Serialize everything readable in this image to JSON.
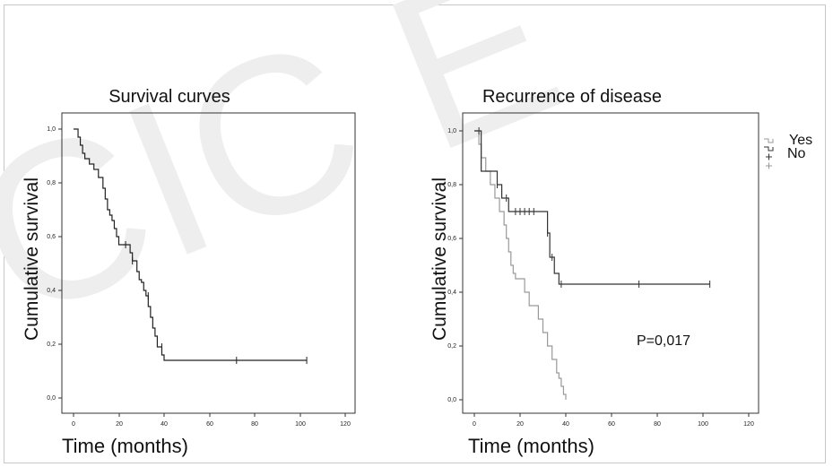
{
  "colors": {
    "frame": "#c8c8c8",
    "curve_main": "#222222",
    "curve_yes": "#999999",
    "curve_no": "#333333",
    "watermark": "#eeeeee"
  },
  "chart_data": [
    {
      "type": "line",
      "title": "Survival curves",
      "xlabel": "Time (months)",
      "ylabel": "Cumulative survival",
      "xlim": [
        0,
        120
      ],
      "ylim": [
        0,
        1
      ],
      "xticks": [
        "0",
        "20",
        "40",
        "60",
        "80",
        "100",
        "120"
      ],
      "yticks": [
        "0,0",
        "0,2",
        "0,4",
        "0,6",
        "0,8",
        "1,0"
      ],
      "step": true,
      "series": [
        {
          "color": "#222222",
          "x": [
            0,
            2,
            3,
            4,
            5,
            6,
            7,
            9,
            11,
            13,
            14,
            15,
            16,
            17,
            18,
            19,
            20,
            21,
            22,
            23,
            24,
            25,
            26,
            27,
            28,
            29,
            30,
            31,
            32,
            33,
            34,
            35,
            36,
            37,
            38,
            39,
            40,
            103
          ],
          "y": [
            1.0,
            0.97,
            0.94,
            0.91,
            0.89,
            0.89,
            0.87,
            0.85,
            0.82,
            0.78,
            0.74,
            0.7,
            0.68,
            0.66,
            0.63,
            0.6,
            0.57,
            0.57,
            0.57,
            0.57,
            0.57,
            0.54,
            0.51,
            0.51,
            0.47,
            0.44,
            0.43,
            0.4,
            0.38,
            0.34,
            0.3,
            0.26,
            0.23,
            0.19,
            0.19,
            0.16,
            0.14,
            0.14
          ],
          "censored": [
            [
              23,
              0.57
            ],
            [
              26,
              0.51
            ],
            [
              33,
              0.38
            ],
            [
              39,
              0.19
            ],
            [
              72,
              0.14
            ],
            [
              103,
              0.14
            ]
          ]
        }
      ]
    },
    {
      "type": "line",
      "title": "Recurrence of disease",
      "xlabel": "Time (months)",
      "ylabel": "Cumulative survival",
      "xlim": [
        0,
        120
      ],
      "ylim": [
        0,
        1
      ],
      "xticks": [
        "0",
        "20",
        "40",
        "60",
        "80",
        "100",
        "120"
      ],
      "yticks": [
        "0,0",
        "0,2",
        "0,4",
        "0,6",
        "0,8",
        "1,0"
      ],
      "step": true,
      "annotation": "P=0,017",
      "legend": {
        "position": "top-right",
        "entries": [
          "Yes",
          "No"
        ]
      },
      "series": [
        {
          "name": "Yes",
          "color": "#999999",
          "x": [
            0,
            2,
            3,
            5,
            7,
            9,
            11,
            13,
            14,
            15,
            16,
            17,
            18,
            19,
            20,
            22,
            24,
            26,
            28,
            30,
            32,
            34,
            36,
            37,
            38,
            39,
            40
          ],
          "y": [
            1.0,
            0.95,
            0.9,
            0.85,
            0.8,
            0.75,
            0.7,
            0.65,
            0.6,
            0.55,
            0.5,
            0.47,
            0.45,
            0.45,
            0.45,
            0.4,
            0.35,
            0.35,
            0.3,
            0.25,
            0.2,
            0.15,
            0.1,
            0.08,
            0.05,
            0.02,
            0.0
          ]
        },
        {
          "name": "No",
          "color": "#333333",
          "x": [
            0,
            3,
            8,
            10,
            12,
            15,
            30,
            32,
            33,
            35,
            37,
            103
          ],
          "y": [
            1.0,
            0.85,
            0.85,
            0.8,
            0.75,
            0.7,
            0.7,
            0.62,
            0.53,
            0.47,
            0.43,
            0.43
          ],
          "censored": [
            [
              2,
              1.0
            ],
            [
              10,
              0.8
            ],
            [
              14,
              0.75
            ],
            [
              18,
              0.7
            ],
            [
              20,
              0.7
            ],
            [
              22,
              0.7
            ],
            [
              24,
              0.7
            ],
            [
              26,
              0.7
            ],
            [
              32,
              0.62
            ],
            [
              34,
              0.53
            ],
            [
              38,
              0.43
            ],
            [
              72,
              0.43
            ],
            [
              103,
              0.43
            ]
          ]
        }
      ]
    }
  ]
}
